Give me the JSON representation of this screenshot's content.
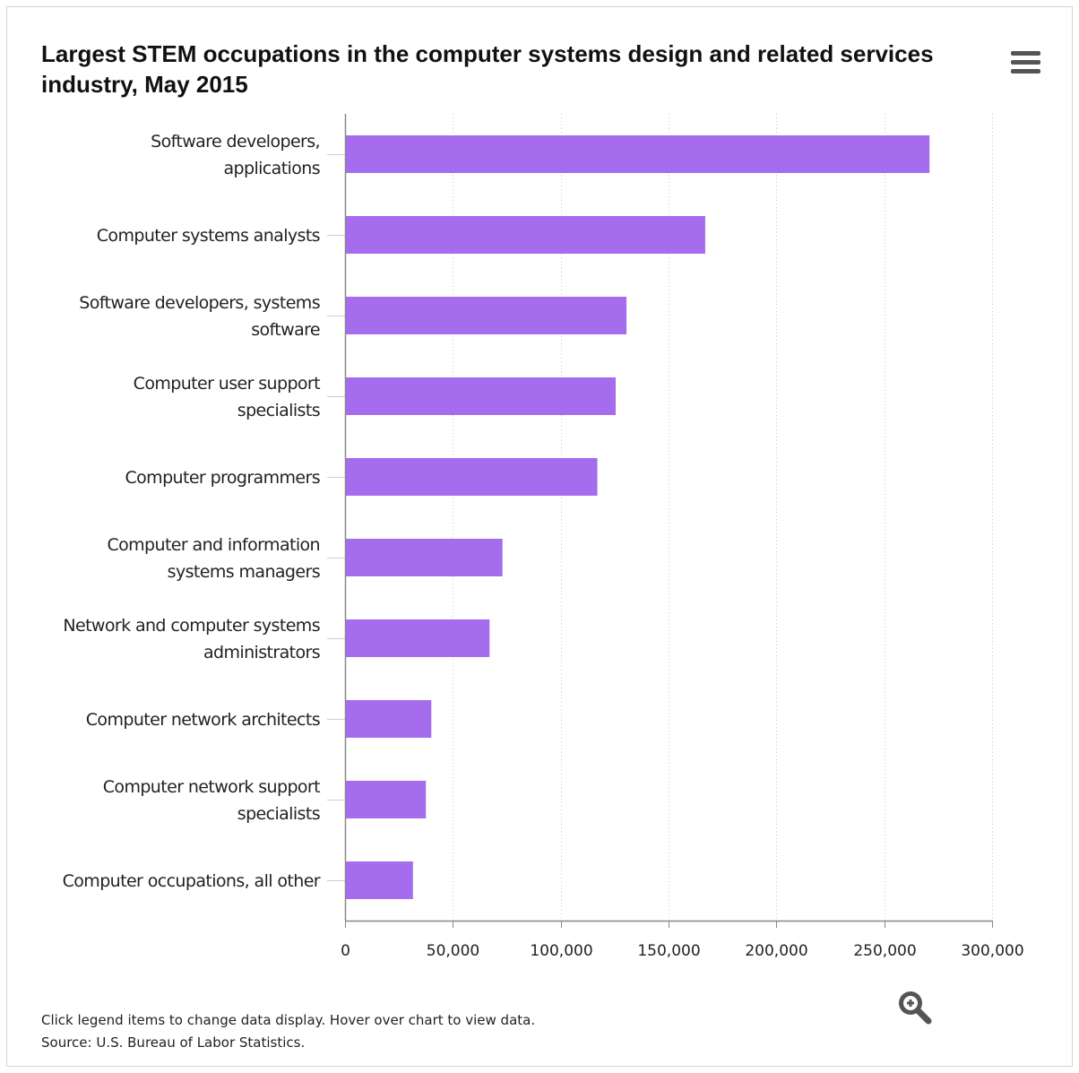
{
  "chart_data": {
    "type": "bar",
    "orientation": "horizontal",
    "title": "Largest STEM occupations in the computer systems design and related services industry, May 2015",
    "categories": [
      [
        "Software developers,",
        "applications"
      ],
      [
        "Computer systems analysts"
      ],
      [
        "Software developers, systems",
        "software"
      ],
      [
        "Computer user support",
        "specialists"
      ],
      [
        "Computer programmers"
      ],
      [
        "Computer and information",
        "systems managers"
      ],
      [
        "Network and computer systems",
        "administrators"
      ],
      [
        "Computer network architects"
      ],
      [
        "Computer network support",
        "specialists"
      ],
      [
        "Computer occupations, all other"
      ]
    ],
    "values": [
      271000,
      167000,
      130500,
      125500,
      117000,
      73000,
      67000,
      40000,
      37500,
      31500
    ],
    "xlim": [
      0,
      300000
    ],
    "xticks": [
      0,
      50000,
      100000,
      150000,
      200000,
      250000,
      300000
    ],
    "xtick_labels": [
      "0",
      "50,000",
      "100,000",
      "150,000",
      "200,000",
      "250,000",
      "300,000"
    ],
    "xlabel": "",
    "ylabel": "",
    "grid": true,
    "bar_color": "#a56cee",
    "legend": null
  },
  "footer": {
    "note": "Click legend items to change data display. Hover over chart to view data.",
    "source": "Source: U.S. Bureau of Labor Statistics."
  },
  "icons": {
    "menu": "hamburger-menu-icon",
    "zoom": "zoom-in-icon"
  },
  "colors": {
    "bar": "#a56cee",
    "axis": "#888888",
    "grid": "#c8c8c8",
    "icon": "#555555"
  }
}
